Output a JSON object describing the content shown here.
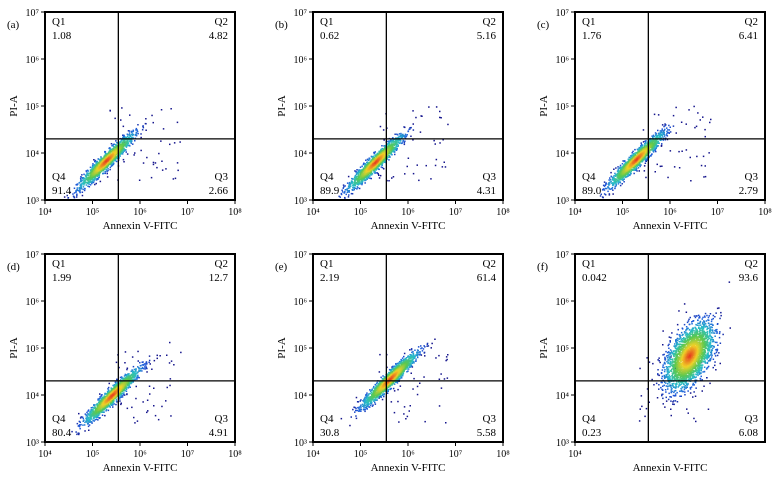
{
  "chart_data": [
    {
      "type": "scatter",
      "panel_label": "(a)",
      "xlabel": "Annexin V-FITC",
      "ylabel": "PI-A",
      "xscale": "log",
      "yscale": "log",
      "xlim": [
        10000,
        100000000
      ],
      "ylim": [
        1000,
        10000000
      ],
      "x_ticks": [
        "10⁴",
        "10⁵",
        "10⁶",
        "10⁷",
        "10⁸"
      ],
      "y_ticks": [
        "10³",
        "10⁴",
        "10⁵",
        "10⁶",
        "10⁷"
      ],
      "gate": {
        "x": 350000,
        "y": 20000
      },
      "quadrants": {
        "q1_label": "Q1",
        "q1": "1.08",
        "q2_label": "Q2",
        "q2": "4.82",
        "q3_label": "Q3",
        "q3": "2.66",
        "q4_label": "Q4",
        "q4": "91.4"
      },
      "population": {
        "center": [
          190000,
          7000
        ],
        "shape": "diagonal",
        "events": 1500
      }
    },
    {
      "type": "scatter",
      "panel_label": "(b)",
      "xlabel": "Annexin V-FITC",
      "ylabel": "PI-A",
      "xscale": "log",
      "yscale": "log",
      "xlim": [
        10000,
        100000000
      ],
      "ylim": [
        1000,
        10000000
      ],
      "x_ticks": [
        "10⁴",
        "10⁵",
        "10⁶",
        "10⁷",
        "10⁸"
      ],
      "y_ticks": [
        "10³",
        "10⁴",
        "10⁵",
        "10⁶",
        "10⁷"
      ],
      "gate": {
        "x": 350000,
        "y": 20000
      },
      "quadrants": {
        "q1_label": "Q1",
        "q1": "0.62",
        "q2_label": "Q2",
        "q2": "5.16",
        "q3_label": "Q3",
        "q3": "4.31",
        "q4_label": "Q4",
        "q4": "89.9"
      },
      "population": {
        "center": [
          200000,
          6500
        ],
        "shape": "diagonal",
        "events": 1500
      }
    },
    {
      "type": "scatter",
      "panel_label": "(c)",
      "xlabel": "Annexin V-FITC",
      "ylabel": "PI-A",
      "xscale": "log",
      "yscale": "log",
      "xlim": [
        10000,
        100000000
      ],
      "ylim": [
        1000,
        10000000
      ],
      "x_ticks": [
        "10⁴",
        "10⁵",
        "10⁶",
        "10⁷",
        "10⁸"
      ],
      "y_ticks": [
        "10³",
        "10⁴",
        "10⁵",
        "10⁶",
        "10⁷"
      ],
      "gate": {
        "x": 350000,
        "y": 20000
      },
      "quadrants": {
        "q1_label": "Q1",
        "q1": "1.76",
        "q2_label": "Q2",
        "q2": "6.41",
        "q3_label": "Q3",
        "q3": "2.79",
        "q4_label": "Q4",
        "q4": "89.0"
      },
      "population": {
        "center": [
          190000,
          7500
        ],
        "shape": "diagonal",
        "events": 1500
      }
    },
    {
      "type": "scatter",
      "panel_label": "(d)",
      "xlabel": "Annexin V-FITC",
      "ylabel": "PI-A",
      "xscale": "log",
      "yscale": "log",
      "xlim": [
        10000,
        100000000
      ],
      "ylim": [
        1000,
        10000000
      ],
      "x_ticks": [
        "10⁴",
        "10⁵",
        "10⁶",
        "10⁷",
        "10⁸"
      ],
      "y_ticks": [
        "10³",
        "10⁴",
        "10⁵",
        "10⁶",
        "10⁷"
      ],
      "gate": {
        "x": 350000,
        "y": 20000
      },
      "quadrants": {
        "q1_label": "Q1",
        "q1": "1.99",
        "q2_label": "Q2",
        "q2": "12.7",
        "q3_label": "Q3",
        "q3": "4.91",
        "q4_label": "Q4",
        "q4": "80.4"
      },
      "population": {
        "center": [
          250000,
          10000
        ],
        "shape": "diagonal",
        "events": 1500
      }
    },
    {
      "type": "scatter",
      "panel_label": "(e)",
      "xlabel": "Annexin V-FITC",
      "ylabel": "PI-A",
      "xscale": "log",
      "yscale": "log",
      "xlim": [
        10000,
        100000000
      ],
      "ylim": [
        1000,
        10000000
      ],
      "x_ticks": [
        "10⁴",
        "10⁵",
        "10⁶",
        "10⁷",
        "10⁸"
      ],
      "y_ticks": [
        "10³",
        "10⁴",
        "10⁵",
        "10⁶",
        "10⁷"
      ],
      "gate": {
        "x": 350000,
        "y": 20000
      },
      "quadrants": {
        "q1_label": "Q1",
        "q1": "2.19",
        "q2_label": "Q2",
        "q2": "61.4",
        "q3_label": "Q3",
        "q3": "5.58",
        "q4_label": "Q4",
        "q4": "30.8"
      },
      "population": {
        "center": [
          400000,
          22000
        ],
        "shape": "diagonal",
        "events": 1500
      }
    },
    {
      "type": "scatter",
      "panel_label": "(f)",
      "xlabel": "Annexin V-FITC",
      "ylabel": "PI-A",
      "xscale": "log",
      "yscale": "log",
      "xlim": [
        10000,
        100000000
      ],
      "ylim": [
        1000,
        10000000
      ],
      "x_ticks": [
        "10⁴"
      ],
      "y_ticks": [
        "10³",
        "10⁴",
        "10⁵",
        "10⁶",
        "10⁷"
      ],
      "gate": {
        "x": 350000,
        "y": 20000
      },
      "quadrants": {
        "q1_label": "Q1",
        "q1": "0.042",
        "q2_label": "Q2",
        "q2": "93.6",
        "q3_label": "Q3",
        "q3": "6.08",
        "q4_label": "Q4",
        "q4": "0.23"
      },
      "population": {
        "center": [
          2500000,
          70000
        ],
        "shape": "blob",
        "events": 2500
      }
    }
  ]
}
